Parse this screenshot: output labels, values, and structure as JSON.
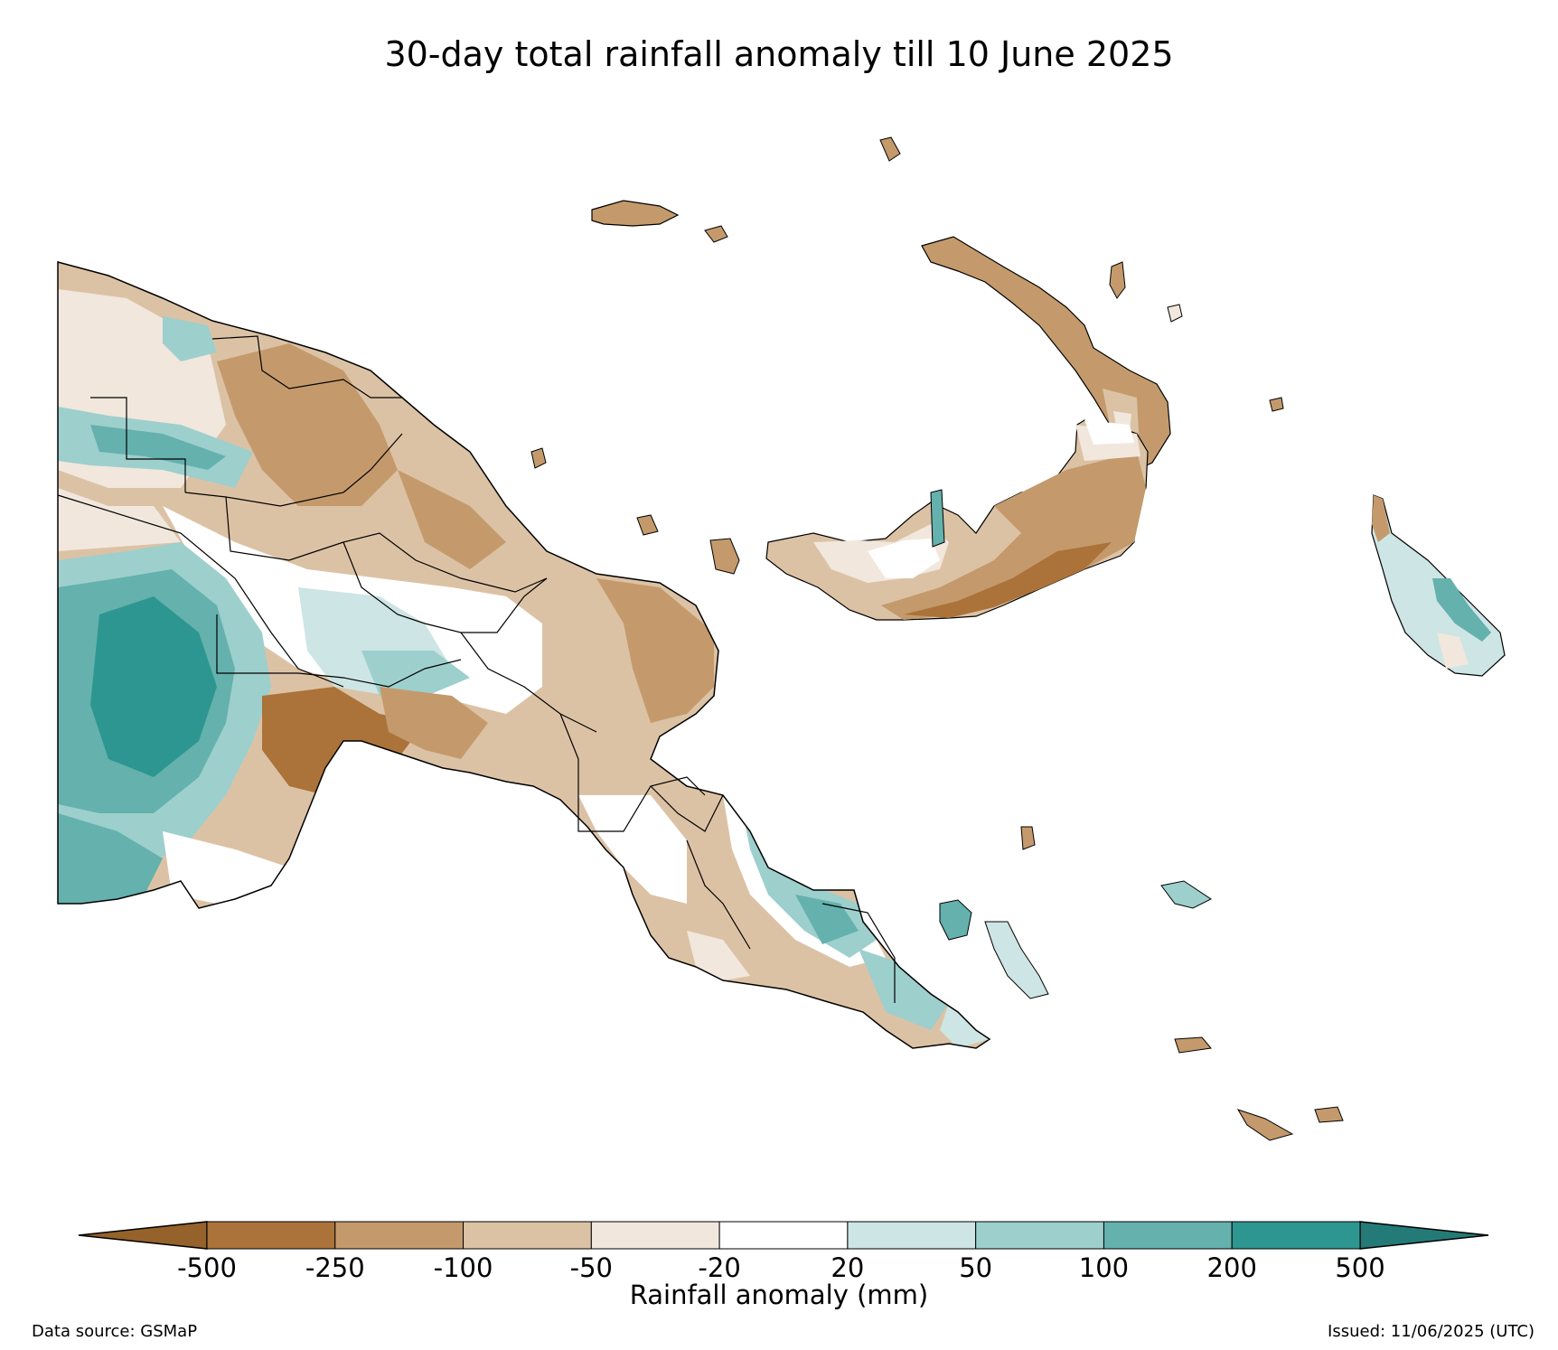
{
  "map": {
    "title": "30-day total rainfall anomaly till 10 June 2025",
    "data_source": "Data source: GSMaP",
    "issued": "Issued: 11/06/2025 (UTC)"
  },
  "colorbar": {
    "label": "Rainfall anomaly (mm)",
    "ticks": [
      "-500",
      "-250",
      "-100",
      "-50",
      "-20",
      "20",
      "50",
      "100",
      "200",
      "500"
    ],
    "under_color": "#94622a",
    "over_color": "#237a76",
    "colors": [
      "#ab7339",
      "#c49a6c",
      "#dcc2a5",
      "#f1e7dd",
      "#ffffff",
      "#cde5e4",
      "#9dcfcd",
      "#64b1ad",
      "#2e9690"
    ]
  },
  "legend_colors": {
    "coast": "#000000",
    "province_border": "#000000"
  }
}
